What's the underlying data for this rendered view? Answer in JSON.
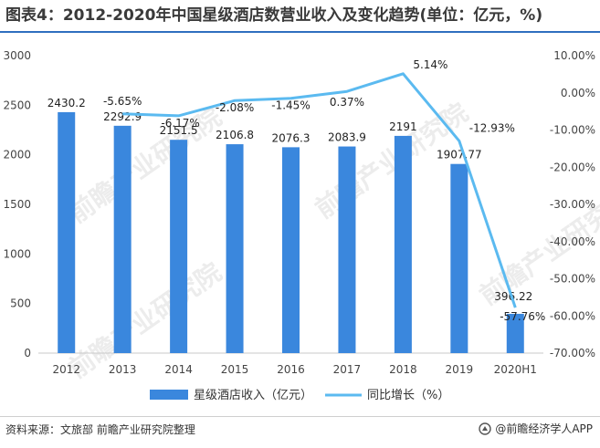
{
  "title": "图表4：2012-2020年中国星级酒店数营业收入及变化趋势(单位：亿元，%)",
  "footer": {
    "source": "资料来源：文旅部 前瞻产业研究院整理",
    "brand": "@前瞻经济学人APP"
  },
  "watermark": "前瞻产业研究院",
  "colors": {
    "bar": "#3a87dd",
    "line": "#5bbaf0",
    "title_rule": "#2f6fbf"
  },
  "chart_data": {
    "type": "bar",
    "categories": [
      "2012",
      "2013",
      "2014",
      "2015",
      "2016",
      "2017",
      "2018",
      "2019",
      "2020H1"
    ],
    "series": [
      {
        "name": "星级酒店收入（亿元）",
        "type": "bar",
        "axis": "left",
        "values": [
          2430.2,
          2292.9,
          2151.5,
          2106.8,
          2076.3,
          2083.9,
          2191,
          1907.77,
          396.22
        ],
        "labels": [
          "2430.2",
          "2292.9",
          "2151.5",
          "2106.8",
          "2076.3",
          "2083.9",
          "2191",
          "1907.77",
          "396.22"
        ]
      },
      {
        "name": "同比增长（%）",
        "type": "line",
        "axis": "right",
        "values": [
          null,
          -5.65,
          -6.17,
          -2.08,
          -1.45,
          0.37,
          5.14,
          -12.93,
          -57.76
        ],
        "labels": [
          "",
          "-5.65%",
          "-6.17%",
          "-2.08%",
          "-1.45%",
          "0.37%",
          "5.14%",
          "-12.93%",
          "-57.76%"
        ]
      }
    ],
    "y_left": {
      "min": 0,
      "max": 3000,
      "ticks": [
        "0",
        "500",
        "1000",
        "1500",
        "2000",
        "2500",
        "3000"
      ]
    },
    "y_right": {
      "min": -70,
      "max": 10,
      "ticks": [
        "-70.00%",
        "-60.00%",
        "-50.00%",
        "-40.00%",
        "-30.00%",
        "-20.00%",
        "-10.00%",
        "0.00%",
        "10.00%"
      ]
    },
    "grid": false,
    "legend": "bottom"
  }
}
